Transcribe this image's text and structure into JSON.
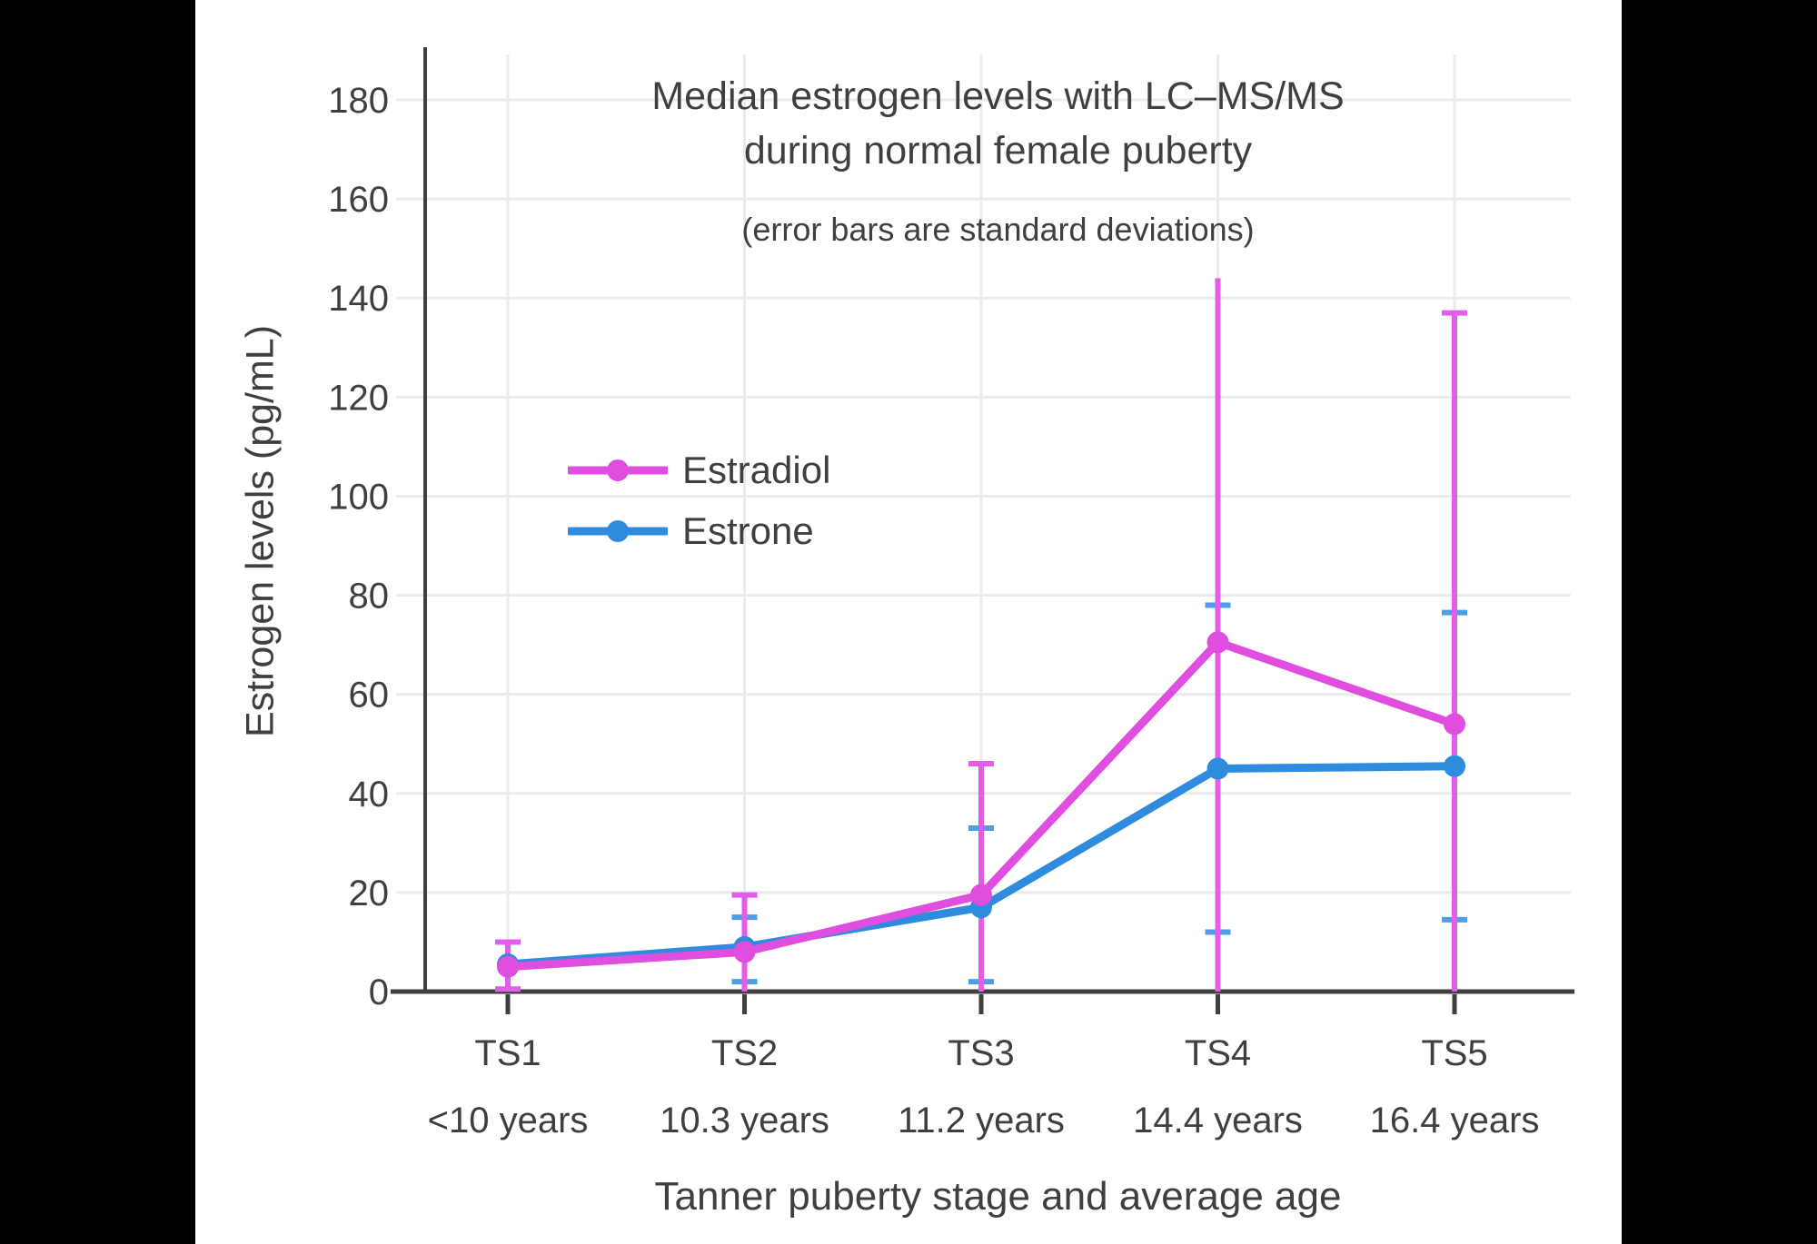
{
  "chart": {
    "title_line1": "Median estrogen levels with LC–MS/MS",
    "title_line2": "during normal female puberty",
    "subtitle": "(error bars are standard deviations)",
    "y_axis_label": "Estrogen levels (pg/mL)",
    "x_axis_label": "Tanner puberty stage and average age"
  },
  "colors": {
    "background": "#000000",
    "panel": "#ffffff",
    "text": "#3E3F40",
    "axis": "#3F3F3F",
    "grid": "#EBEBEB",
    "estradiol": "#E04EE0",
    "estradiol_error": "#E25DE9",
    "estrone": "#2E8BDE",
    "estrone_error": "#4C9DE6"
  },
  "chart_data": {
    "type": "line",
    "title": "Median estrogen levels with LC–MS/MS during normal female puberty",
    "subtitle": "(error bars are standard deviations)",
    "xlabel": "Tanner puberty stage and average age",
    "ylabel": "Estrogen levels (pg/mL)",
    "ylim": [
      0,
      190
    ],
    "yticks": [
      0,
      20,
      40,
      60,
      80,
      100,
      120,
      140,
      160,
      180
    ],
    "grid": true,
    "legend_position": "upper-left-inside",
    "error_bars": "standard deviations",
    "categories": [
      "TS1",
      "TS2",
      "TS3",
      "TS4",
      "TS5"
    ],
    "category_sublabels": [
      "<10 years",
      "10.3 years",
      "11.2 years",
      "14.4 years",
      "16.4 years"
    ],
    "series": [
      {
        "name": "Estradiol",
        "color": "#E04EE0",
        "error_color": "#E25DE9",
        "values": [
          5,
          8,
          19.5,
          70.5,
          54
        ],
        "err_hi": [
          10,
          19.5,
          46,
          144,
          137
        ],
        "err_lo": [
          0.5,
          0,
          0,
          0,
          0
        ],
        "cap_hi": [
          true,
          true,
          true,
          false,
          true
        ],
        "cap_lo": [
          true,
          false,
          false,
          false,
          false
        ]
      },
      {
        "name": "Estrone",
        "color": "#2E8BDE",
        "error_color": "#4C9DE6",
        "values": [
          5.5,
          9,
          17,
          45,
          45.5
        ],
        "err_hi": [
          null,
          15,
          33,
          78,
          76.5
        ],
        "err_lo": [
          null,
          2,
          2,
          12,
          14.5
        ],
        "cap_hi": [
          false,
          true,
          true,
          true,
          true
        ],
        "cap_lo": [
          false,
          true,
          true,
          true,
          true
        ]
      }
    ]
  }
}
